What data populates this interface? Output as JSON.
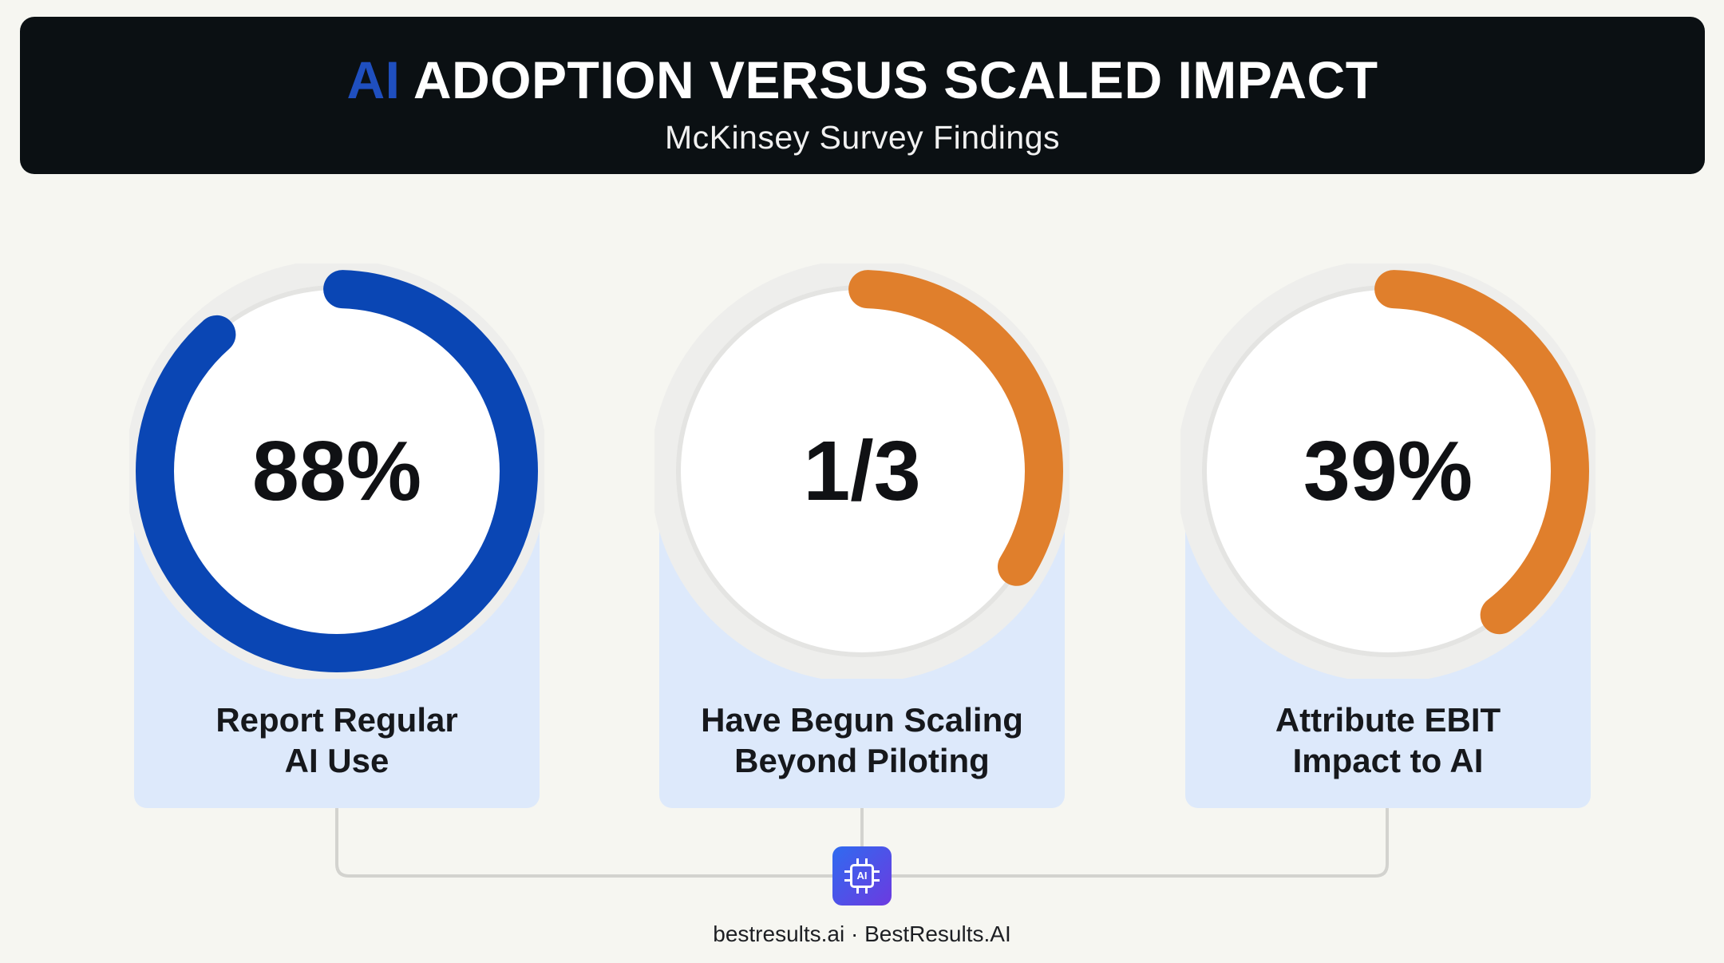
{
  "header": {
    "title_accent": "AI",
    "title_rest": " ADOPTION VERSUS SCALED IMPACT",
    "subtitle": "McKinsey Survey Findings"
  },
  "colors": {
    "header_bg": "#0b1013",
    "accent_blue": "#0a46b4",
    "accent_orange": "#e07f2c",
    "track": "#e4e4e2",
    "card_bg": "#dde9fb"
  },
  "chart_data": {
    "type": "donut",
    "items": [
      {
        "display": "88%",
        "value": 0.88,
        "label_lines": [
          "Report Regular",
          "AI Use"
        ],
        "color": "#0a46b4"
      },
      {
        "display": "1/3",
        "value": 0.333,
        "label_lines": [
          "Have Begun Scaling",
          "Beyond Piloting"
        ],
        "color": "#e07f2c"
      },
      {
        "display": "39%",
        "value": 0.39,
        "label_lines": [
          "Attribute EBIT",
          "Impact to AI"
        ],
        "color": "#e07f2c"
      }
    ]
  },
  "badge": {
    "icon": "ai-chip-icon",
    "text": "AI"
  },
  "footer": {
    "text": "bestresults.ai · BestResults.AI"
  }
}
